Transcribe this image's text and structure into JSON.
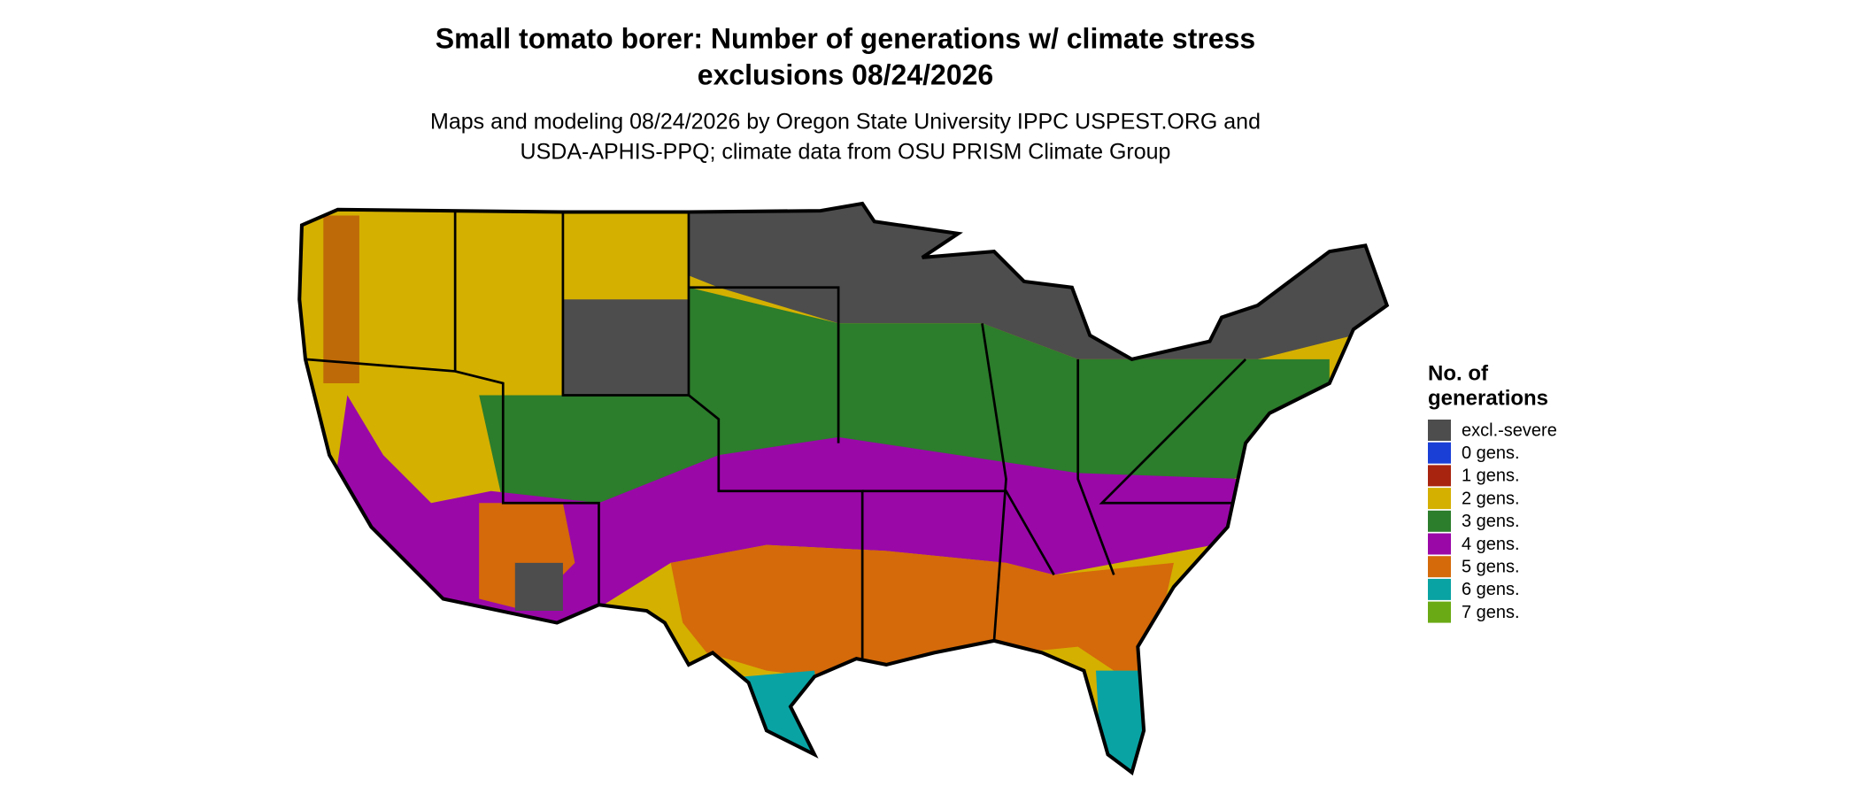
{
  "title": [
    "Small tomato borer: Number of generations w/ climate stress",
    "exclusions 08/24/2026"
  ],
  "subtitle": [
    "Maps and modeling 08/24/2026 by Oregon State University IPPC USPEST.ORG and",
    "USDA-APHIS-PPQ; climate data from OSU PRISM Climate Group"
  ],
  "legend": {
    "title": [
      "No. of",
      "generations"
    ],
    "items": [
      {
        "label": "excl.-severe",
        "color": "#4d4d4d"
      },
      {
        "label": "0 gens.",
        "color": "#1a3fd6"
      },
      {
        "label": "1 gens.",
        "color": "#a8240f"
      },
      {
        "label": "2 gens.",
        "color": "#d4b000"
      },
      {
        "label": "3 gens.",
        "color": "#2c7d2c"
      },
      {
        "label": "4 gens.",
        "color": "#9a08a8"
      },
      {
        "label": "5 gens.",
        "color": "#d46a0a"
      },
      {
        "label": "6 gens.",
        "color": "#0aa3a3"
      },
      {
        "label": "7 gens.",
        "color": "#6aaa14"
      }
    ]
  }
}
